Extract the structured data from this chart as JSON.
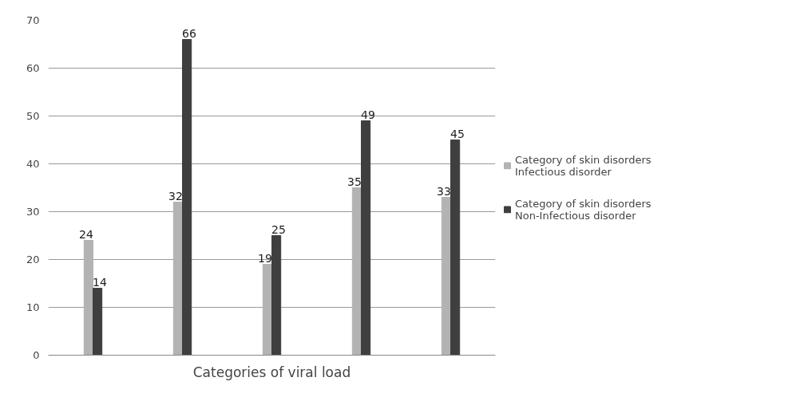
{
  "chart_data": {
    "type": "bar",
    "xlabel": "Categories of viral load",
    "categories": [
      null,
      null,
      null,
      null,
      null
    ],
    "series": [
      {
        "name": "Category of skin disorders\nInfectious disorder",
        "color": "#b3b3b3",
        "values": [
          24,
          32,
          19,
          35,
          33
        ]
      },
      {
        "name": "Category of skin disorders\nNon-Infectious disorder",
        "color": "#3f3f3f",
        "values": [
          14,
          66,
          25,
          49,
          45
        ]
      }
    ],
    "ylim": [
      0,
      70
    ],
    "yticks": [
      0,
      10,
      20,
      30,
      40,
      50,
      60,
      70
    ],
    "grid": "y",
    "legend": "right",
    "data_labels": true
  }
}
